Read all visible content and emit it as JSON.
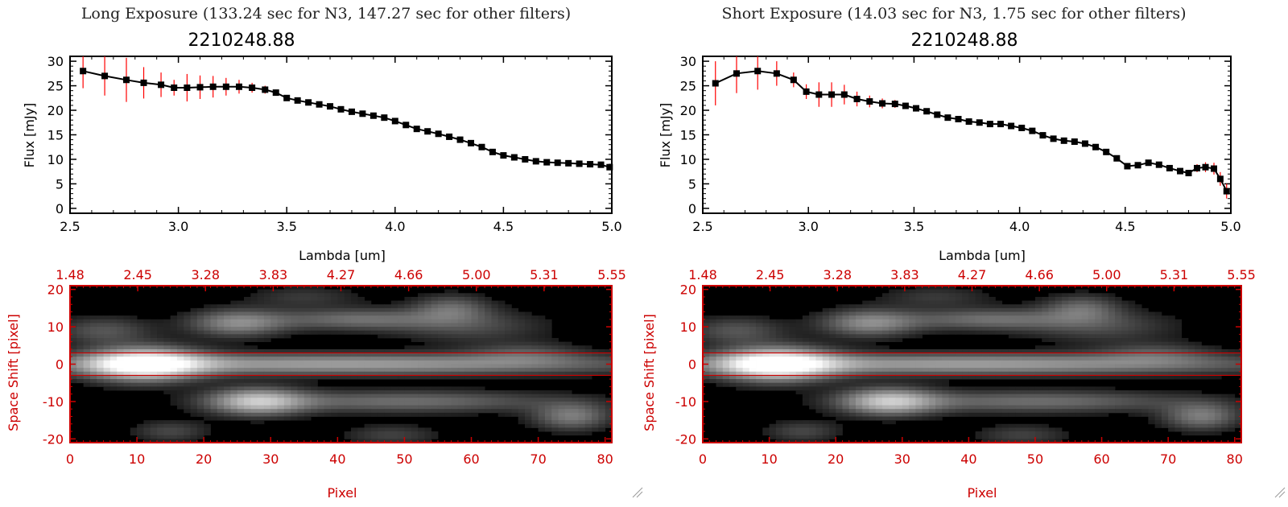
{
  "panels": [
    {
      "header": "Long Exposure (133.24 sec for N3, 147.27 sec for other filters)",
      "spectrum_title": "2210248.88",
      "spectrum_xlabel": "Lambda [um]",
      "spectrum_ylabel": "Flux [mJy]",
      "image_xlabel": "Pixel",
      "image_ylabel": "Space Shift [pixel]",
      "top_ticks": [
        "1.48",
        "2.45",
        "3.28",
        "3.83",
        "4.27",
        "4.66",
        "5.00",
        "5.31",
        "5.55"
      ]
    },
    {
      "header": "Short Exposure (14.03 sec for N3, 1.75 sec for other filters)",
      "spectrum_title": "2210248.88",
      "spectrum_xlabel": "Lambda [um]",
      "spectrum_ylabel": "Flux [mJy]",
      "image_xlabel": "Pixel",
      "image_ylabel": "Space Shift [pixel]",
      "top_ticks": [
        "1.48",
        "2.45",
        "3.28",
        "3.83",
        "4.27",
        "4.66",
        "5.00",
        "5.31",
        "5.55"
      ]
    }
  ],
  "colors": {
    "spectrum": "#000000",
    "errorbar": "#ff0000",
    "image_axes": "#cc0000",
    "image_background": "#000000"
  },
  "chart_data": [
    {
      "type": "line",
      "title": "2210248.88",
      "xlabel": "Lambda [um]",
      "ylabel": "Flux [mJy]",
      "xlim": [
        2.5,
        5.0
      ],
      "ylim": [
        -1,
        31
      ],
      "xticks": [
        "2.5",
        "3.0",
        "3.5",
        "4.0",
        "4.5",
        "5.0"
      ],
      "yticks": [
        "0",
        "5",
        "10",
        "15",
        "20",
        "25",
        "30"
      ],
      "x": [
        2.56,
        2.66,
        2.76,
        2.84,
        2.92,
        2.98,
        3.04,
        3.1,
        3.16,
        3.22,
        3.28,
        3.34,
        3.4,
        3.45,
        3.5,
        3.55,
        3.6,
        3.65,
        3.7,
        3.75,
        3.8,
        3.85,
        3.9,
        3.95,
        4.0,
        4.05,
        4.1,
        4.15,
        4.2,
        4.25,
        4.3,
        4.35,
        4.4,
        4.45,
        4.5,
        4.55,
        4.6,
        4.65,
        4.7,
        4.75,
        4.8,
        4.85,
        4.9,
        4.95,
        4.99
      ],
      "y": [
        28.0,
        27.0,
        26.2,
        25.6,
        25.2,
        24.6,
        24.6,
        24.7,
        24.8,
        24.8,
        24.8,
        24.6,
        24.2,
        23.6,
        22.5,
        22.0,
        21.6,
        21.2,
        20.8,
        20.2,
        19.7,
        19.3,
        18.9,
        18.5,
        17.8,
        17.0,
        16.2,
        15.7,
        15.2,
        14.6,
        14.0,
        13.3,
        12.5,
        11.5,
        10.8,
        10.4,
        10.0,
        9.6,
        9.4,
        9.3,
        9.2,
        9.1,
        9.0,
        8.9,
        8.4
      ],
      "yerr": [
        3.5,
        4.0,
        4.5,
        3.2,
        2.5,
        1.6,
        2.8,
        2.4,
        2.2,
        1.8,
        1.4,
        1.0,
        0.8,
        0.6,
        0.5,
        0.5,
        0.5,
        0.5,
        0.5,
        0.5,
        0.5,
        0.5,
        0.5,
        0.5,
        0.5,
        0.5,
        0.5,
        0.5,
        0.5,
        0.5,
        0.5,
        0.5,
        0.5,
        0.5,
        0.5,
        0.5,
        0.5,
        0.5,
        0.5,
        0.6,
        0.5,
        0.5,
        0.5,
        0.5,
        0.6
      ]
    },
    {
      "type": "line",
      "title": "2210248.88",
      "xlabel": "Lambda [um]",
      "ylabel": "Flux [mJy]",
      "xlim": [
        2.5,
        5.0
      ],
      "ylim": [
        -1,
        31
      ],
      "xticks": [
        "2.5",
        "3.0",
        "3.5",
        "4.0",
        "4.5",
        "5.0"
      ],
      "yticks": [
        "0",
        "5",
        "10",
        "15",
        "20",
        "25",
        "30"
      ],
      "x": [
        2.56,
        2.66,
        2.76,
        2.85,
        2.93,
        2.99,
        3.05,
        3.11,
        3.17,
        3.23,
        3.29,
        3.35,
        3.41,
        3.46,
        3.51,
        3.56,
        3.61,
        3.66,
        3.71,
        3.76,
        3.81,
        3.86,
        3.91,
        3.96,
        4.01,
        4.06,
        4.11,
        4.16,
        4.21,
        4.26,
        4.31,
        4.36,
        4.41,
        4.46,
        4.51,
        4.56,
        4.61,
        4.66,
        4.71,
        4.76,
        4.8,
        4.84,
        4.88,
        4.92,
        4.95,
        4.98
      ],
      "y": [
        25.5,
        27.5,
        28.0,
        27.5,
        26.2,
        23.8,
        23.2,
        23.2,
        23.2,
        22.3,
        21.8,
        21.4,
        21.3,
        20.9,
        20.4,
        19.8,
        19.1,
        18.5,
        18.2,
        17.7,
        17.5,
        17.2,
        17.2,
        16.8,
        16.4,
        15.8,
        14.9,
        14.2,
        13.8,
        13.6,
        13.2,
        12.5,
        11.5,
        10.2,
        8.6,
        8.8,
        9.3,
        8.9,
        8.2,
        7.6,
        7.2,
        8.2,
        8.4,
        8.1,
        6.0,
        3.5
      ],
      "yerr": [
        4.5,
        4.0,
        3.8,
        2.5,
        1.5,
        1.5,
        2.5,
        2.5,
        2.0,
        1.5,
        1.2,
        1.0,
        0.8,
        0.6,
        0.5,
        0.5,
        0.5,
        0.5,
        0.5,
        0.5,
        0.5,
        0.5,
        0.5,
        0.5,
        0.5,
        0.5,
        0.5,
        0.5,
        0.5,
        0.5,
        0.5,
        0.5,
        0.5,
        0.5,
        0.5,
        0.5,
        0.5,
        0.5,
        0.5,
        0.5,
        0.6,
        0.8,
        1.0,
        1.2,
        1.4,
        1.5
      ]
    },
    {
      "type": "heatmap",
      "xlabel": "Pixel",
      "ylabel": "Space Shift [pixel]",
      "xlim": [
        0,
        81
      ],
      "ylim": [
        -21,
        21
      ],
      "xticks": [
        "0",
        "10",
        "20",
        "30",
        "40",
        "50",
        "60",
        "70",
        "80"
      ],
      "yticks": [
        "-20",
        "-10",
        "0",
        "10",
        "20"
      ],
      "top_ticks": [
        "1.48",
        "2.45",
        "3.28",
        "3.83",
        "4.27",
        "4.66",
        "5.00",
        "5.31",
        "5.55"
      ],
      "extraction_window": [
        -3,
        3
      ],
      "blobs": [
        {
          "x": 11,
          "y": 0,
          "sx": 6,
          "sy": 3,
          "a": 1.0
        },
        {
          "x": 40,
          "y": 0,
          "sx": 32,
          "sy": 2.0,
          "a": 0.55
        },
        {
          "x": 28,
          "y": -10,
          "sx": 5,
          "sy": 2.5,
          "a": 0.65
        },
        {
          "x": 50,
          "y": -10,
          "sx": 16,
          "sy": 2.0,
          "a": 0.35
        },
        {
          "x": 25,
          "y": 11,
          "sx": 5,
          "sy": 2.5,
          "a": 0.45
        },
        {
          "x": 43,
          "y": 12,
          "sx": 9,
          "sy": 2.0,
          "a": 0.35
        },
        {
          "x": 57,
          "y": 15,
          "sx": 4,
          "sy": 2.5,
          "a": 0.3
        },
        {
          "x": 75,
          "y": -14,
          "sx": 4,
          "sy": 2.5,
          "a": 0.4
        },
        {
          "x": 5,
          "y": 9,
          "sx": 5,
          "sy": 2.5,
          "a": 0.25
        },
        {
          "x": 60,
          "y": 10,
          "sx": 8,
          "sy": 3,
          "a": 0.2
        },
        {
          "x": 68,
          "y": 3,
          "sx": 6,
          "sy": 2,
          "a": 0.2
        },
        {
          "x": 15,
          "y": -18,
          "sx": 4,
          "sy": 2,
          "a": 0.2
        },
        {
          "x": 48,
          "y": -19,
          "sx": 5,
          "sy": 2,
          "a": 0.18
        },
        {
          "x": 35,
          "y": 18,
          "sx": 6,
          "sy": 2,
          "a": 0.15
        }
      ]
    },
    {
      "type": "heatmap",
      "xlabel": "Pixel",
      "ylabel": "Space Shift [pixel]",
      "xlim": [
        0,
        81
      ],
      "ylim": [
        -21,
        21
      ],
      "xticks": [
        "0",
        "10",
        "20",
        "30",
        "40",
        "50",
        "60",
        "70",
        "80"
      ],
      "yticks": [
        "-20",
        "-10",
        "0",
        "10",
        "20"
      ],
      "top_ticks": [
        "1.48",
        "2.45",
        "3.28",
        "3.83",
        "4.27",
        "4.66",
        "5.00",
        "5.31",
        "5.55"
      ],
      "extraction_window": [
        -3,
        3
      ],
      "blobs": [
        {
          "x": 11,
          "y": 0,
          "sx": 6,
          "sy": 3,
          "a": 1.0
        },
        {
          "x": 40,
          "y": 0,
          "sx": 32,
          "sy": 2.0,
          "a": 0.55
        },
        {
          "x": 28,
          "y": -10,
          "sx": 5,
          "sy": 2.5,
          "a": 0.65
        },
        {
          "x": 50,
          "y": -10,
          "sx": 16,
          "sy": 2.0,
          "a": 0.35
        },
        {
          "x": 25,
          "y": 11,
          "sx": 5,
          "sy": 2.5,
          "a": 0.45
        },
        {
          "x": 43,
          "y": 12,
          "sx": 9,
          "sy": 2.0,
          "a": 0.35
        },
        {
          "x": 57,
          "y": 15,
          "sx": 4,
          "sy": 2.5,
          "a": 0.3
        },
        {
          "x": 75,
          "y": -14,
          "sx": 4,
          "sy": 2.5,
          "a": 0.4
        },
        {
          "x": 5,
          "y": 9,
          "sx": 5,
          "sy": 2.5,
          "a": 0.25
        },
        {
          "x": 60,
          "y": 10,
          "sx": 8,
          "sy": 3,
          "a": 0.2
        },
        {
          "x": 68,
          "y": 3,
          "sx": 6,
          "sy": 2,
          "a": 0.2
        },
        {
          "x": 15,
          "y": -18,
          "sx": 4,
          "sy": 2,
          "a": 0.2
        },
        {
          "x": 48,
          "y": -19,
          "sx": 5,
          "sy": 2,
          "a": 0.18
        },
        {
          "x": 35,
          "y": 18,
          "sx": 6,
          "sy": 2,
          "a": 0.15
        }
      ]
    }
  ]
}
